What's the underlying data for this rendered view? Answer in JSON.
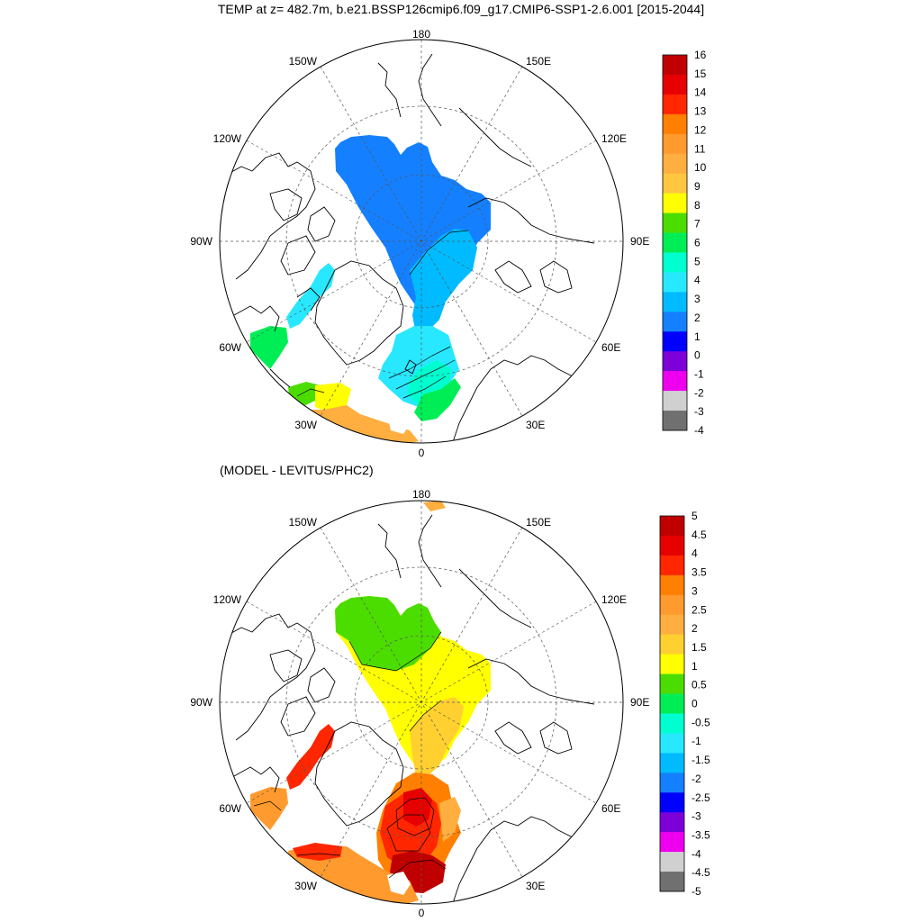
{
  "title": "TEMP at z= 482.7m, b.e21.BSSP126cmip6.f09_g17.CMIP6-SSP1-2.6.001 [2015-2044]",
  "subtitle": "(MODEL - LEVITUS/PHC2)",
  "lon_labels": {
    "top": "180",
    "bottom": "0",
    "left_mid": "90W",
    "right_mid": "90E",
    "upper_left": "150W",
    "upper_right": "150E",
    "mid_upper_left": "120W",
    "mid_upper_right": "120E",
    "mid_lower_left": "60W",
    "mid_lower_right": "60E",
    "lower_left": "30W",
    "lower_right": "30E"
  },
  "chart_data": [
    {
      "type": "heatmap",
      "projection": "north-polar-stereographic",
      "colorbar": {
        "labels": [
          "16",
          "15",
          "14",
          "13",
          "12",
          "11",
          "10",
          "9",
          "8",
          "7",
          "6",
          "5",
          "4",
          "3",
          "2",
          "1",
          "0",
          "-1",
          "-2",
          "-3",
          "-4"
        ],
        "colors": [
          "#c00000",
          "#e60000",
          "#ff2600",
          "#ff7f00",
          "#ff9a2e",
          "#ffae40",
          "#ffc640",
          "#ffff00",
          "#4cdd00",
          "#00ee55",
          "#00ffd0",
          "#28e8ff",
          "#00bbff",
          "#1480ff",
          "#0000ff",
          "#7e00d8",
          "#ee00ee",
          "#d0d0d0",
          "#707070"
        ]
      }
    },
    {
      "type": "heatmap",
      "projection": "north-polar-stereographic",
      "colorbar": {
        "labels": [
          "5",
          "4.5",
          "4",
          "3.5",
          "3",
          "2.5",
          "2",
          "1.5",
          "1",
          "0.5",
          "0",
          "-0.5",
          "-1",
          "-1.5",
          "-2",
          "-2.5",
          "-3",
          "-3.5",
          "-4",
          "-4.5",
          "-5"
        ],
        "colors": [
          "#c00000",
          "#e60000",
          "#ff2600",
          "#ff7f00",
          "#ff9a2e",
          "#ffae40",
          "#ffd030",
          "#ffff00",
          "#4cdd00",
          "#00ee55",
          "#00ffd0",
          "#28e8ff",
          "#00bbff",
          "#1480ff",
          "#0000ff",
          "#7e00d8",
          "#ee00ee",
          "#d0d0d0",
          "#707070"
        ]
      }
    }
  ]
}
